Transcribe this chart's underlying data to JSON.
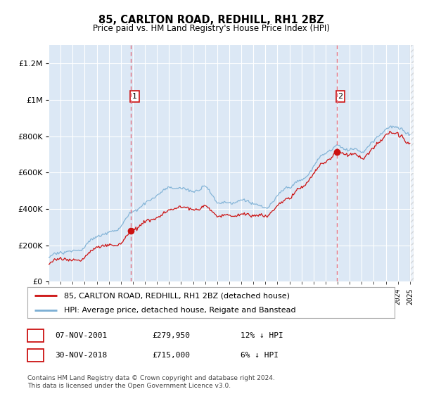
{
  "title": "85, CARLTON ROAD, REDHILL, RH1 2BZ",
  "subtitle": "Price paid vs. HM Land Registry's House Price Index (HPI)",
  "legend_line1": "85, CARLTON ROAD, REDHILL, RH1 2BZ (detached house)",
  "legend_line2": "HPI: Average price, detached house, Reigate and Banstead",
  "sale1_label": "1",
  "sale1_date": "07-NOV-2001",
  "sale1_price": "£279,950",
  "sale1_hpi": "12% ↓ HPI",
  "sale2_label": "2",
  "sale2_date": "30-NOV-2018",
  "sale2_price": "£715,000",
  "sale2_hpi": "6% ↓ HPI",
  "footer": "Contains HM Land Registry data © Crown copyright and database right 2024.\nThis data is licensed under the Open Government Licence v3.0.",
  "hpi_color": "#7bafd4",
  "price_color": "#cc1111",
  "sale_marker_color": "#cc1111",
  "dashed_line_color": "#e07080",
  "bg_color": "#dce8f5",
  "plot_bg": "#dce8f5",
  "ylim": [
    0,
    1300000
  ],
  "yticks": [
    0,
    200000,
    400000,
    600000,
    800000,
    1000000,
    1200000
  ],
  "sale1_year": 2001.85,
  "sale1_value": 279950,
  "sale2_year": 2018.92,
  "sale2_value": 715000,
  "xmin": 1995.0,
  "xmax": 2025.3
}
